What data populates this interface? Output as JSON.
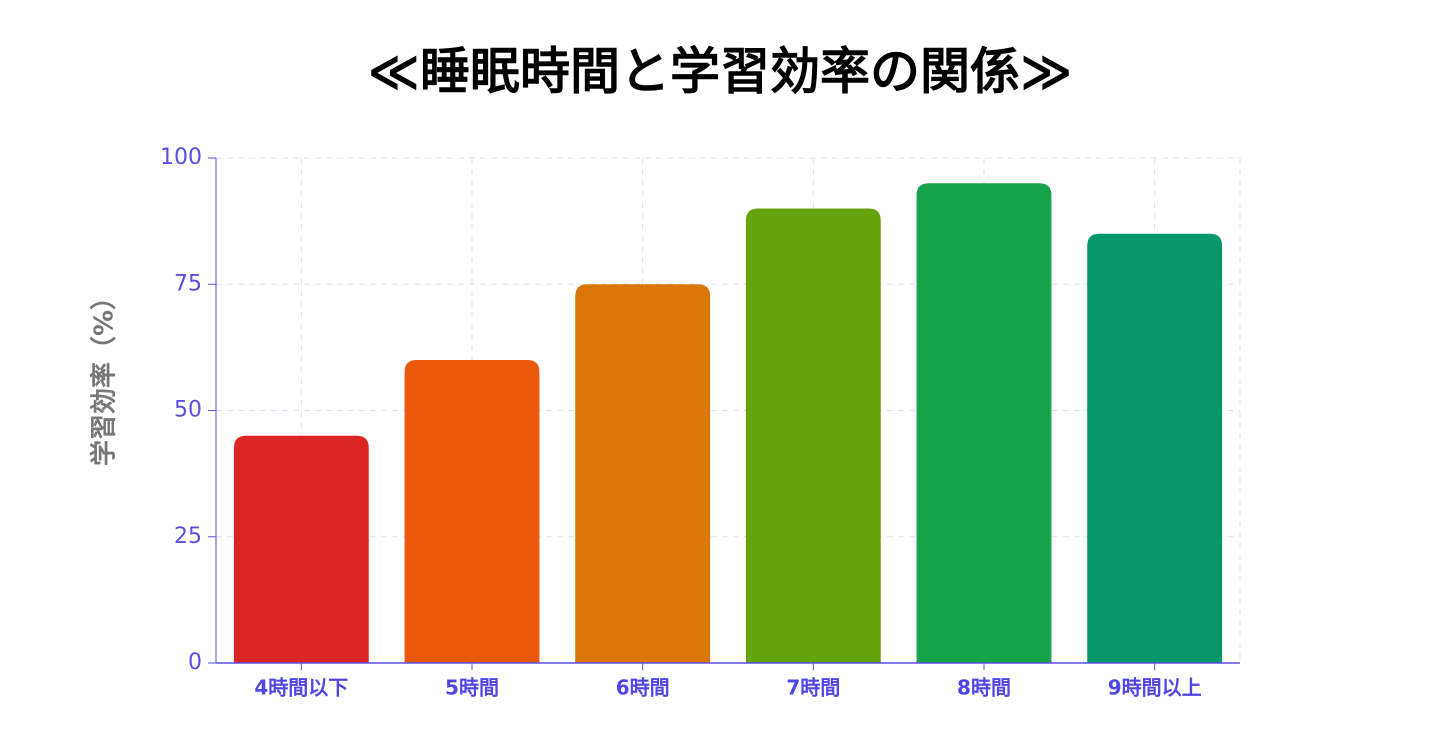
{
  "chart_data": {
    "type": "bar",
    "title": "≪睡眠時間と学習効率の関係≫",
    "y_label": "学習効率（%）",
    "categories": [
      "4時間以下",
      "5時間",
      "6時間",
      "7時間",
      "8時間",
      "9時間以上"
    ],
    "values": [
      45,
      60,
      75,
      90,
      95,
      85
    ],
    "colors": [
      "#dc2626",
      "#ea580c",
      "#d97706",
      "#65a30d",
      "#16a34a",
      "#059669"
    ],
    "ylim": [
      0,
      100
    ],
    "yticks": [
      0,
      25,
      50,
      75,
      100
    ],
    "grid": true
  }
}
